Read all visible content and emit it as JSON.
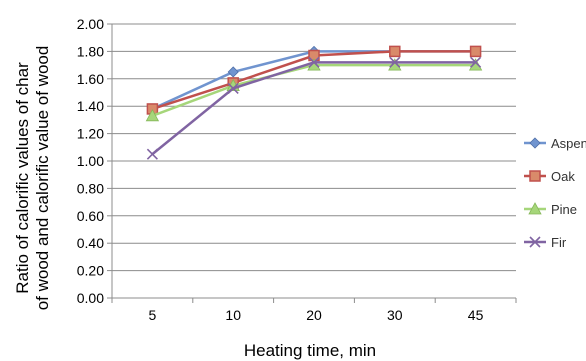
{
  "chart_data": {
    "type": "line",
    "categories": [
      "5",
      "10",
      "20",
      "30",
      "45"
    ],
    "xlabel": "Heating time, min",
    "ylabel_lines": [
      "Ratio of calorific values of char",
      "of wood and calorific value of wood"
    ],
    "ylim": [
      0,
      2.0
    ],
    "ytick_step": 0.2,
    "ytick_labels": [
      "0.00",
      "0.20",
      "0.40",
      "0.60",
      "0.80",
      "1.00",
      "1.20",
      "1.40",
      "1.60",
      "1.80",
      "2.00"
    ],
    "grid": true,
    "legend_position": "right",
    "series": [
      {
        "name": "Aspen",
        "color": "#7094cf",
        "marker": "diamond",
        "values": [
          1.38,
          1.65,
          1.8,
          1.8,
          1.8
        ]
      },
      {
        "name": "Oak",
        "color": "#c0504d",
        "marker": "square",
        "values": [
          1.38,
          1.57,
          1.77,
          1.8,
          1.8
        ]
      },
      {
        "name": "Pine",
        "color": "#a6d67a",
        "marker": "triangle",
        "values": [
          1.33,
          1.55,
          1.7,
          1.7,
          1.7
        ]
      },
      {
        "name": "Fir",
        "color": "#8064a2",
        "marker": "x",
        "values": [
          1.05,
          1.53,
          1.72,
          1.72,
          1.72
        ]
      }
    ]
  }
}
